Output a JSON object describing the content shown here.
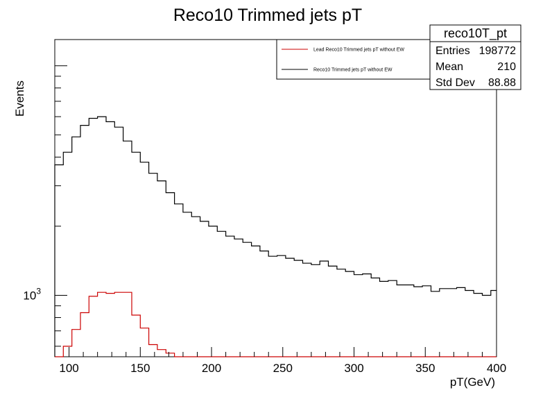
{
  "chart_data": {
    "type": "line",
    "title": "Reco10 Trimmed jets pT",
    "xlabel": "pT(GeV)",
    "ylabel": "Events",
    "xlim": [
      90,
      400
    ],
    "ylim": [
      540,
      13000
    ],
    "yscale": "log",
    "x_ticks": [
      100,
      150,
      200,
      250,
      300,
      350,
      400
    ],
    "y_ticks": [
      {
        "value": 1000,
        "label": "10",
        "exp": "3"
      }
    ],
    "bin_edges": [
      90,
      96,
      102,
      108,
      114,
      120,
      126,
      132,
      138,
      144,
      150,
      156,
      162,
      168,
      174,
      180,
      186,
      192,
      198,
      204,
      210,
      216,
      222,
      228,
      234,
      240,
      246,
      252,
      258,
      264,
      270,
      276,
      282,
      288,
      294,
      300,
      306,
      312,
      318,
      324,
      330,
      336,
      342,
      348,
      354,
      360,
      366,
      372,
      378,
      384,
      390,
      396,
      400
    ],
    "series": [
      {
        "name": "Lead Reco10 Trimmed jets pT without EW",
        "color": "#cc0000",
        "values": [
          540,
          600,
          710,
          840,
          990,
          1030,
          1020,
          1030,
          1030,
          820,
          720,
          610,
          580,
          560,
          540,
          540,
          540,
          540,
          540,
          540,
          540,
          540,
          540,
          540,
          540,
          540,
          540,
          540,
          540,
          540,
          540,
          540,
          540,
          540,
          540,
          540,
          540,
          540,
          540,
          540,
          540,
          540,
          540,
          540,
          540,
          540,
          540,
          540,
          540,
          540,
          540,
          540
        ]
      },
      {
        "name": "Reco10 Trimmed jets pT without EW",
        "color": "#000000",
        "values": [
          3700,
          4200,
          4900,
          5500,
          5900,
          6000,
          5700,
          5400,
          4700,
          4200,
          3800,
          3400,
          3150,
          2800,
          2500,
          2300,
          2200,
          2100,
          2000,
          1900,
          1810,
          1760,
          1700,
          1640,
          1560,
          1480,
          1490,
          1450,
          1420,
          1380,
          1360,
          1410,
          1340,
          1300,
          1270,
          1230,
          1240,
          1190,
          1150,
          1160,
          1110,
          1110,
          1090,
          1100,
          1040,
          1070,
          1070,
          1080,
          1050,
          1020,
          1000,
          1050
        ]
      }
    ],
    "stats": {
      "name": "reco10T_pt",
      "rows": [
        {
          "label": "Entries",
          "value": "198772"
        },
        {
          "label": "Mean",
          "value": "210"
        },
        {
          "label": "Std Dev",
          "value": "88.88"
        }
      ]
    },
    "legend_position": "top-right",
    "grid": false
  }
}
